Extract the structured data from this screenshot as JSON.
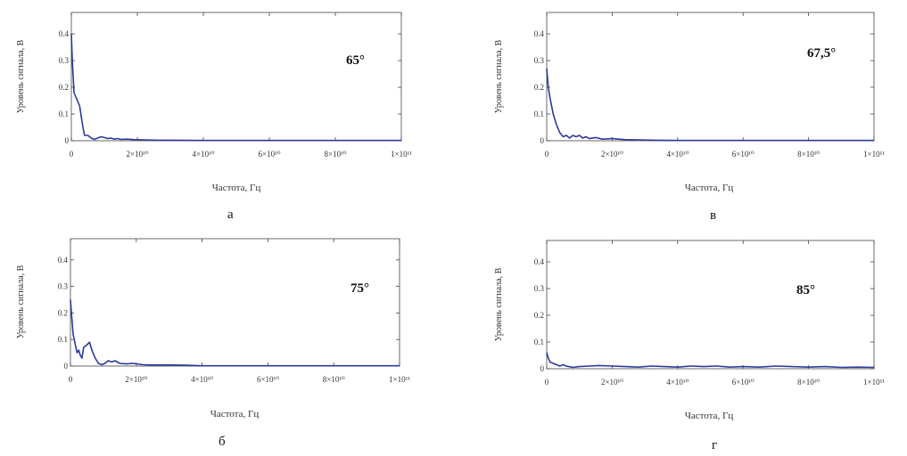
{
  "chart_data": [
    {
      "type": "line",
      "caption": "а",
      "annotation": "65°",
      "xlabel": "Частота, Гц",
      "ylabel": "Уровень сигнала, В",
      "xlim": [
        0,
        100000000000
      ],
      "ylim": [
        0,
        0.48
      ],
      "x_ticks": [
        0,
        20000000000,
        40000000000,
        60000000000,
        80000000000,
        100000000000
      ],
      "x_tick_labels": [
        "0",
        "2×10¹⁰",
        "4×10¹⁰",
        "6×10¹⁰",
        "8×10¹⁰",
        "1×10¹¹"
      ],
      "y_ticks": [
        0,
        0.1,
        0.2,
        0.3,
        0.4
      ],
      "y_tick_labels": [
        "0",
        "0.1",
        "0.2",
        "0.3",
        "0.4"
      ],
      "color": "#2b3a9a",
      "x": [
        0,
        300000000,
        800000000,
        1500000000,
        2500000000,
        3500000000,
        4000000000,
        5000000000,
        6000000000,
        7000000000,
        8000000000,
        9000000000,
        10000000000,
        11000000000,
        12000000000,
        13000000000,
        14000000000,
        15000000000,
        17000000000,
        19000000000,
        22000000000,
        26000000000,
        30000000000,
        40000000000,
        50000000000,
        60000000000,
        70000000000,
        80000000000,
        90000000000,
        100000000000
      ],
      "y": [
        0.4,
        0.3,
        0.18,
        0.16,
        0.13,
        0.05,
        0.02,
        0.02,
        0.01,
        0.005,
        0.01,
        0.015,
        0.012,
        0.008,
        0.01,
        0.006,
        0.008,
        0.005,
        0.006,
        0.004,
        0.003,
        0.002,
        0.002,
        0.001,
        0.001,
        0.001,
        0.001,
        0.001,
        0.001,
        0.001
      ]
    },
    {
      "type": "line",
      "caption": "в",
      "annotation": "67,5°",
      "xlabel": "Частота, Гц",
      "ylabel": "Уровень сигнала, В",
      "xlim": [
        0,
        100000000000
      ],
      "ylim": [
        0,
        0.48
      ],
      "x_ticks": [
        0,
        20000000000,
        40000000000,
        60000000000,
        80000000000,
        100000000000
      ],
      "x_tick_labels": [
        "0",
        "2×10¹⁰",
        "4×10¹⁰",
        "6×10¹⁰",
        "8×10¹⁰",
        "1×10¹¹"
      ],
      "y_ticks": [
        0,
        0.1,
        0.2,
        0.3,
        0.4
      ],
      "y_tick_labels": [
        "0",
        "0.1",
        "0.2",
        "0.3",
        "0.4"
      ],
      "color": "#2b3a9a",
      "x": [
        0,
        500000000,
        1000000000,
        2000000000,
        3000000000,
        4000000000,
        5000000000,
        6000000000,
        7000000000,
        8000000000,
        9000000000,
        10000000000,
        11000000000,
        12000000000,
        13000000000,
        15000000000,
        17000000000,
        20000000000,
        24000000000,
        28000000000,
        33000000000,
        40000000000,
        50000000000,
        60000000000,
        70000000000,
        80000000000,
        90000000000,
        100000000000
      ],
      "y": [
        0.27,
        0.2,
        0.16,
        0.1,
        0.06,
        0.03,
        0.015,
        0.02,
        0.01,
        0.02,
        0.015,
        0.02,
        0.01,
        0.015,
        0.008,
        0.012,
        0.006,
        0.008,
        0.004,
        0.003,
        0.002,
        0.001,
        0.001,
        0.001,
        0.001,
        0.001,
        0.001,
        0.001
      ]
    },
    {
      "type": "line",
      "caption": "б",
      "annotation": "75°",
      "xlabel": "Частота, Гц",
      "ylabel": "Уровень сигнала, В",
      "xlim": [
        0,
        100000000000
      ],
      "ylim": [
        0,
        0.48
      ],
      "x_ticks": [
        0,
        20000000000,
        40000000000,
        60000000000,
        80000000000,
        100000000000
      ],
      "x_tick_labels": [
        "0",
        "2×10¹⁰",
        "4×10¹⁰",
        "6×10¹⁰",
        "8×10¹⁰",
        "1×10¹¹"
      ],
      "y_ticks": [
        0,
        0.1,
        0.2,
        0.3,
        0.4
      ],
      "y_tick_labels": [
        "0",
        "0.1",
        "0.2",
        "0.3",
        "0.4"
      ],
      "color": "#2b3a9a",
      "x": [
        0,
        300000000,
        800000000,
        1500000000,
        2000000000,
        2500000000,
        3000000000,
        3500000000,
        4000000000,
        5000000000,
        5800000000,
        6500000000,
        7500000000,
        8500000000,
        9500000000,
        10500000000,
        11500000000,
        12500000000,
        13500000000,
        15000000000,
        17000000000,
        19000000000,
        22000000000,
        26000000000,
        30000000000,
        35000000000,
        40000000000,
        50000000000,
        60000000000,
        70000000000,
        80000000000,
        90000000000,
        100000000000
      ],
      "y": [
        0.25,
        0.2,
        0.12,
        0.08,
        0.05,
        0.06,
        0.04,
        0.03,
        0.07,
        0.08,
        0.09,
        0.06,
        0.03,
        0.01,
        0.005,
        0.01,
        0.02,
        0.015,
        0.02,
        0.01,
        0.008,
        0.01,
        0.005,
        0.004,
        0.004,
        0.003,
        0.001,
        0.001,
        0.001,
        0.001,
        0.001,
        0.001,
        0.001
      ]
    },
    {
      "type": "line",
      "caption": "г",
      "annotation": "85°",
      "xlabel": "Частота, Гц",
      "ylabel": "Уровень сигнала, В",
      "xlim": [
        0,
        100000000000
      ],
      "ylim": [
        0,
        0.48
      ],
      "x_ticks": [
        0,
        20000000000,
        40000000000,
        60000000000,
        80000000000,
        100000000000
      ],
      "x_tick_labels": [
        "0",
        "2×10¹⁰",
        "4×10¹⁰",
        "6×10¹⁰",
        "8×10¹⁰",
        "1×10¹¹"
      ],
      "y_ticks": [
        0,
        0.1,
        0.2,
        0.3,
        0.4
      ],
      "y_tick_labels": [
        "0",
        "0.1",
        "0.2",
        "0.3",
        "0.4"
      ],
      "color": "#2b3a9a",
      "x": [
        0,
        500000000,
        1000000000,
        2000000000,
        3000000000,
        4000000000,
        5000000000,
        6000000000,
        8000000000,
        10000000000,
        13000000000,
        16000000000,
        20000000000,
        24000000000,
        28000000000,
        32000000000,
        36000000000,
        40000000000,
        44000000000,
        48000000000,
        52000000000,
        56000000000,
        60000000000,
        65000000000,
        70000000000,
        75000000000,
        80000000000,
        85000000000,
        90000000000,
        95000000000,
        100000000000
      ],
      "y": [
        0.06,
        0.04,
        0.025,
        0.02,
        0.015,
        0.01,
        0.015,
        0.01,
        0.005,
        0.008,
        0.01,
        0.012,
        0.01,
        0.008,
        0.006,
        0.01,
        0.008,
        0.006,
        0.01,
        0.008,
        0.01,
        0.006,
        0.008,
        0.006,
        0.01,
        0.008,
        0.006,
        0.008,
        0.005,
        0.006,
        0.005
      ]
    }
  ]
}
